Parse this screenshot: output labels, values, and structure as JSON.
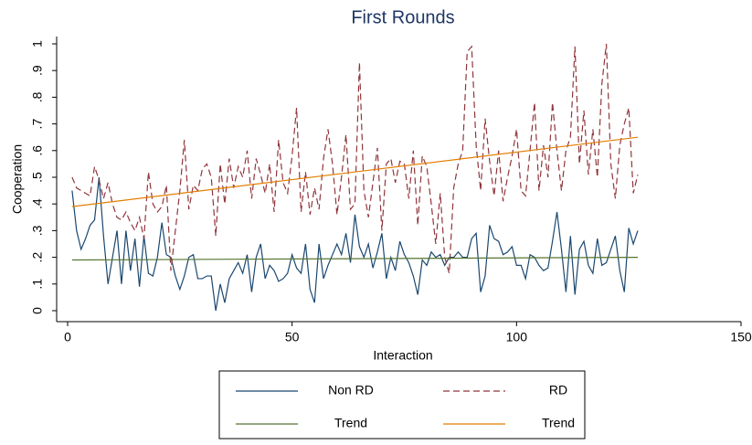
{
  "chart_data": {
    "type": "line",
    "title": "First Rounds",
    "x_label": "Interaction",
    "y_label": "Cooperation",
    "x": [
      1,
      2,
      3,
      4,
      5,
      6,
      7,
      8,
      9,
      10,
      11,
      12,
      13,
      14,
      15,
      16,
      17,
      18,
      19,
      20,
      21,
      22,
      23,
      24,
      25,
      26,
      27,
      28,
      29,
      30,
      31,
      32,
      33,
      34,
      35,
      36,
      37,
      38,
      39,
      40,
      41,
      42,
      43,
      44,
      45,
      46,
      47,
      48,
      49,
      50,
      51,
      52,
      53,
      54,
      55,
      56,
      57,
      58,
      59,
      60,
      61,
      62,
      63,
      64,
      65,
      66,
      67,
      68,
      69,
      70,
      71,
      72,
      73,
      74,
      75,
      76,
      77,
      78,
      79,
      80,
      81,
      82,
      83,
      84,
      85,
      86,
      87,
      88,
      89,
      90,
      91,
      92,
      93,
      94,
      95,
      96,
      97,
      98,
      99,
      100,
      101,
      102,
      103,
      104,
      105,
      106,
      107,
      108,
      109,
      110,
      111,
      112,
      113,
      114,
      115,
      116,
      117,
      118,
      119,
      120,
      121,
      122,
      123,
      124,
      125,
      126,
      127
    ],
    "series": [
      {
        "name": "Non RD",
        "color": "#1a476f",
        "dash": false,
        "values": [
          0.45,
          0.3,
          0.23,
          0.27,
          0.32,
          0.34,
          0.5,
          0.28,
          0.1,
          0.2,
          0.3,
          0.1,
          0.3,
          0.15,
          0.27,
          0.09,
          0.28,
          0.14,
          0.13,
          0.2,
          0.33,
          0.21,
          0.2,
          0.13,
          0.08,
          0.13,
          0.2,
          0.21,
          0.12,
          0.12,
          0.13,
          0.13,
          0,
          0.1,
          0.03,
          0.12,
          0.15,
          0.18,
          0.14,
          0.21,
          0.07,
          0.2,
          0.25,
          0.12,
          0.17,
          0.15,
          0.11,
          0.12,
          0.14,
          0.21,
          0.16,
          0.14,
          0.25,
          0.08,
          0.03,
          0.25,
          0.12,
          0.17,
          0.21,
          0.25,
          0.21,
          0.29,
          0.18,
          0.36,
          0.24,
          0.2,
          0.25,
          0.16,
          0.22,
          0.29,
          0.12,
          0.2,
          0.15,
          0.26,
          0.21,
          0.18,
          0.13,
          0.06,
          0.19,
          0.17,
          0.22,
          0.2,
          0.21,
          0.17,
          0.2,
          0.2,
          0.22,
          0.2,
          0.2,
          0.27,
          0.29,
          0.07,
          0.13,
          0.32,
          0.27,
          0.26,
          0.21,
          0.22,
          0.24,
          0.17,
          0.17,
          0.12,
          0.21,
          0.2,
          0.17,
          0.15,
          0.16,
          0.26,
          0.37,
          0.23,
          0.07,
          0.28,
          0.06,
          0.23,
          0.26,
          0.17,
          0.14,
          0.27,
          0.17,
          0.18,
          0.23,
          0.28,
          0.15,
          0.07,
          0.31,
          0.25,
          0.3
        ]
      },
      {
        "name": "RD",
        "color": "#90353b",
        "dash": true,
        "values": [
          0.5,
          0.46,
          0.45,
          0.44,
          0.43,
          0.54,
          0.49,
          0.42,
          0.48,
          0.4,
          0.35,
          0.34,
          0.37,
          0.33,
          0.3,
          0.35,
          0.27,
          0.52,
          0.4,
          0.37,
          0.39,
          0.47,
          0.15,
          0.3,
          0.45,
          0.64,
          0.38,
          0.47,
          0.45,
          0.53,
          0.55,
          0.5,
          0.28,
          0.55,
          0.4,
          0.57,
          0.46,
          0.54,
          0.5,
          0.6,
          0.42,
          0.57,
          0.51,
          0.44,
          0.55,
          0.37,
          0.64,
          0.48,
          0.44,
          0.58,
          0.76,
          0.37,
          0.52,
          0.36,
          0.46,
          0.38,
          0.57,
          0.68,
          0.55,
          0.36,
          0.5,
          0.66,
          0.38,
          0.4,
          0.93,
          0.45,
          0.35,
          0.48,
          0.61,
          0.3,
          0.55,
          0.57,
          0.48,
          0.56,
          0.55,
          0.42,
          0.6,
          0.32,
          0.58,
          0.54,
          0.4,
          0.25,
          0.44,
          0.2,
          0.14,
          0.46,
          0.55,
          0.6,
          0.97,
          0.99,
          0.62,
          0.45,
          0.72,
          0.56,
          0.43,
          0.6,
          0.41,
          0.5,
          0.58,
          0.68,
          0.45,
          0.43,
          0.6,
          0.78,
          0.45,
          0.62,
          0.5,
          0.78,
          0.6,
          0.45,
          0.6,
          0.65,
          0.99,
          0.55,
          0.75,
          0.51,
          0.68,
          0.5,
          0.85,
          1,
          0.55,
          0.42,
          0.62,
          0.7,
          0.76,
          0.44,
          0.51
        ]
      },
      {
        "name": "Trend",
        "color": "#55752f",
        "dash": false,
        "x": [
          1,
          127
        ],
        "values": [
          0.19,
          0.2
        ]
      },
      {
        "name": "Trend",
        "color": "#e37e00",
        "dash": false,
        "x": [
          1,
          127
        ],
        "values": [
          0.39,
          0.65
        ]
      }
    ],
    "xlim": [
      0,
      150
    ],
    "xticks": [
      0,
      50,
      100,
      150
    ],
    "ylim": [
      0,
      1
    ],
    "yticks": [
      0,
      {
        "value": 0.1,
        "label": ".1"
      },
      {
        "value": 0.2,
        "label": ".2"
      },
      {
        "value": 0.3,
        "label": ".3"
      },
      {
        "value": 0.4,
        "label": ".4"
      },
      {
        "value": 0.5,
        "label": ".5"
      },
      {
        "value": 0.6,
        "label": ".6"
      },
      {
        "value": 0.7,
        "label": ".7"
      },
      {
        "value": 0.8,
        "label": ".8"
      },
      {
        "value": 0.9,
        "label": ".9"
      },
      1
    ],
    "grid": false
  }
}
